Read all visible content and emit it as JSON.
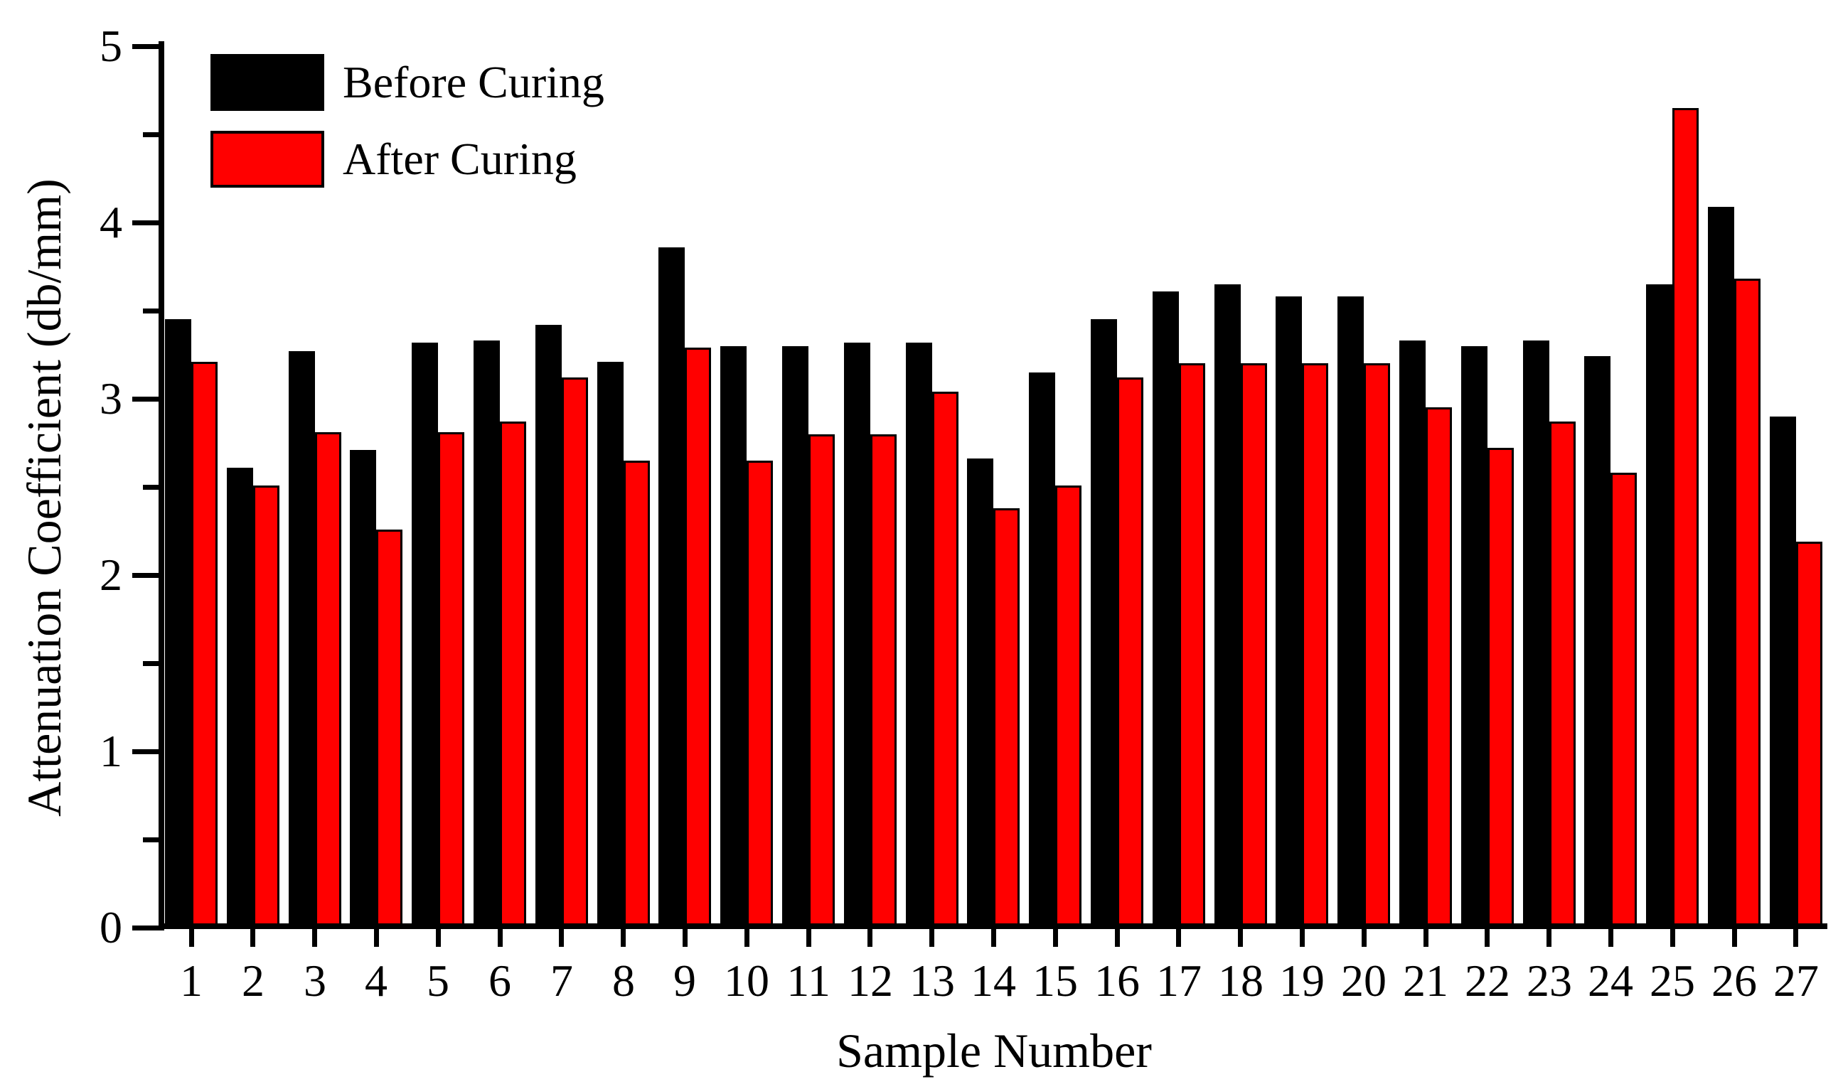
{
  "chart_data": {
    "type": "bar",
    "title": "",
    "xlabel": "Sample Number",
    "ylabel": "Attenuation Coefficient (db/mm)",
    "categories": [
      "1",
      "2",
      "3",
      "4",
      "5",
      "6",
      "7",
      "8",
      "9",
      "10",
      "11",
      "12",
      "13",
      "14",
      "15",
      "16",
      "17",
      "18",
      "19",
      "20",
      "21",
      "22",
      "23",
      "24",
      "25",
      "26",
      "27"
    ],
    "series": [
      {
        "name": "Before Curing",
        "color": "#000000",
        "values": [
          3.45,
          2.61,
          3.27,
          2.71,
          3.32,
          3.33,
          3.42,
          3.21,
          3.86,
          3.3,
          3.3,
          3.32,
          3.32,
          2.66,
          3.15,
          3.45,
          3.61,
          3.65,
          3.58,
          3.58,
          3.33,
          3.3,
          3.33,
          3.24,
          3.65,
          4.09,
          2.9
        ]
      },
      {
        "name": "After Curing",
        "color": "#ff0000",
        "values": [
          3.21,
          2.51,
          2.81,
          2.26,
          2.81,
          2.87,
          3.12,
          2.65,
          3.29,
          2.65,
          2.8,
          2.8,
          3.04,
          2.38,
          2.51,
          3.12,
          3.2,
          3.2,
          3.2,
          3.2,
          2.95,
          2.72,
          2.87,
          2.58,
          4.65,
          3.68,
          2.19
        ]
      }
    ],
    "ylim": [
      0,
      5
    ],
    "y_major_ticks": [
      0,
      1,
      2,
      3,
      4,
      5
    ],
    "y_minor_ticks": [
      0.5,
      1.5,
      2.5,
      3.5,
      4.5
    ],
    "y_tick_labels": [
      "0",
      "1",
      "2",
      "3",
      "4",
      "5"
    ],
    "grid": "off",
    "legend_position": "top-left-inside"
  },
  "legend": {
    "items": [
      {
        "label": "Before Curing",
        "color": "#000000"
      },
      {
        "label": "After Curing",
        "color": "#ff0000"
      }
    ]
  }
}
